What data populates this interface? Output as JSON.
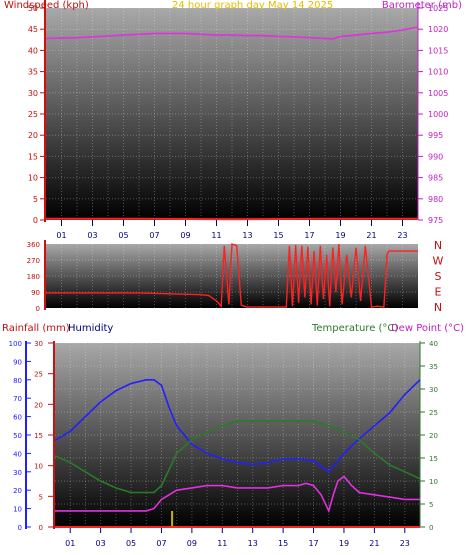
{
  "chart_data": [
    {
      "type": "line",
      "title": "24 hour graph day   May 14 2025",
      "left_axis_label": "Windspeed (kph)",
      "right_axis_label": "Barometer (mb)",
      "left_ticks": [
        "0",
        "5",
        "10",
        "15",
        "20",
        "25",
        "30",
        "35",
        "40",
        "45",
        "50"
      ],
      "right_ticks": [
        "975",
        "980",
        "985",
        "990",
        "995",
        "1000",
        "1005",
        "1010",
        "1015",
        "1020",
        "1025"
      ],
      "ylim_left": [
        0,
        50
      ],
      "ylim_right": [
        975,
        1025
      ],
      "x_ticks": [
        "01",
        "03",
        "05",
        "07",
        "09",
        "11",
        "13",
        "15",
        "17",
        "19",
        "21",
        "23"
      ],
      "xlim": [
        0,
        24
      ],
      "series": [
        {
          "name": "Barometer (mb)",
          "axis": "right",
          "color": "#e030e0",
          "x": [
            0,
            1,
            2,
            3,
            4,
            5,
            6,
            7,
            8,
            9,
            10,
            11,
            12,
            13,
            14,
            15,
            16,
            17,
            18,
            18.5,
            19,
            20,
            21,
            22,
            23,
            24
          ],
          "y": [
            1017.8,
            1017.9,
            1018.0,
            1018.2,
            1018.4,
            1018.6,
            1018.8,
            1019.0,
            1019.0,
            1019.0,
            1018.8,
            1018.6,
            1018.6,
            1018.5,
            1018.5,
            1018.3,
            1018.2,
            1018.0,
            1017.8,
            1017.7,
            1018.3,
            1018.6,
            1019.0,
            1019.3,
            1019.8,
            1020.5
          ]
        },
        {
          "name": "Windspeed (kph)",
          "axis": "left",
          "color": "#ff2020",
          "x": [
            0,
            6,
            12,
            18,
            24
          ],
          "y": [
            0.3,
            0.3,
            0.2,
            0.3,
            0.3
          ]
        }
      ],
      "grid": true
    },
    {
      "type": "line",
      "direction_ticks": [
        "360",
        "270",
        "180",
        "90",
        "0"
      ],
      "compass_labels": [
        "N",
        "W",
        "S",
        "E",
        "N"
      ],
      "ylim": [
        0,
        360
      ],
      "xlim": [
        0,
        24
      ],
      "series": [
        {
          "name": "Wind direction",
          "color": "#ff2020",
          "x": [
            0,
            2,
            4,
            6,
            8,
            10,
            10.5,
            11,
            11.3,
            11.5,
            11.8,
            12.0,
            12.3,
            12.6,
            13.0,
            14.0,
            15.0,
            15.5,
            15.7,
            15.9,
            16.1,
            16.3,
            16.5,
            16.7,
            16.9,
            17.1,
            17.3,
            17.5,
            17.7,
            17.9,
            18.1,
            18.3,
            18.5,
            18.7,
            18.9,
            19.1,
            19.4,
            19.7,
            20.0,
            20.3,
            20.6,
            21.0,
            21.4,
            21.8,
            22.0,
            22.1,
            22.5,
            23,
            24
          ],
          "y": [
            85,
            85,
            85,
            85,
            80,
            75,
            70,
            40,
            10,
            350,
            20,
            360,
            350,
            15,
            5,
            5,
            5,
            5,
            350,
            10,
            355,
            30,
            350,
            60,
            345,
            20,
            320,
            15,
            350,
            50,
            300,
            10,
            340,
            90,
            360,
            20,
            300,
            60,
            340,
            40,
            350,
            5,
            10,
            5,
            300,
            320,
            320,
            320,
            320
          ]
        }
      ]
    },
    {
      "type": "line",
      "left_axis_labels": [
        "Rainfall (mm)",
        "Humidity"
      ],
      "right_axis_labels": [
        "Temperature (°C)",
        "Dew Point (°C)"
      ],
      "humidity_ticks": [
        "0",
        "10",
        "20",
        "30",
        "40",
        "50",
        "60",
        "70",
        "80",
        "90",
        "100"
      ],
      "rainfall_ticks": [
        "0",
        "5",
        "10",
        "15",
        "20",
        "25",
        "30"
      ],
      "temp_ticks": [
        "0",
        "5",
        "10",
        "15",
        "20",
        "25",
        "30",
        "35",
        "40"
      ],
      "ylim_humidity": [
        0,
        100
      ],
      "ylim_rainfall": [
        0,
        30
      ],
      "ylim_temp": [
        0,
        40
      ],
      "x_ticks": [
        "01",
        "03",
        "05",
        "07",
        "09",
        "11",
        "13",
        "15",
        "17",
        "19",
        "21",
        "23"
      ],
      "xlim": [
        0,
        24
      ],
      "series": [
        {
          "name": "Humidity",
          "axis": "humidity",
          "color": "#2020ff",
          "x": [
            0,
            1,
            2,
            3,
            4,
            5,
            6,
            6.5,
            7,
            7.5,
            8,
            9,
            10,
            11,
            12,
            13,
            14,
            15,
            16,
            17,
            17.5,
            18,
            18.5,
            19,
            20,
            21,
            22,
            23,
            24
          ],
          "y": [
            47,
            52,
            60,
            68,
            74,
            78,
            80,
            80,
            77,
            65,
            55,
            45,
            40,
            37,
            35,
            34,
            35,
            37,
            37,
            36,
            33,
            30,
            35,
            40,
            48,
            55,
            62,
            72,
            80
          ]
        },
        {
          "name": "Temperature (°C)",
          "axis": "temp",
          "color": "#2a7a2a",
          "x": [
            0,
            1,
            2,
            3,
            4,
            5,
            6,
            6.5,
            7,
            8,
            9,
            10,
            11,
            12,
            13,
            14,
            15,
            16,
            17,
            18,
            18.5,
            19,
            20,
            21,
            22,
            23,
            24
          ],
          "y": [
            15.5,
            14,
            12,
            10,
            8.5,
            7.5,
            7.5,
            7.5,
            9,
            16,
            19,
            20.5,
            22,
            23,
            23,
            23,
            23,
            23,
            23,
            22,
            21.5,
            20.5,
            19,
            16,
            13.5,
            12,
            10.5
          ]
        },
        {
          "name": "Dew Point (°C)",
          "axis": "temp",
          "color": "#e030e0",
          "x": [
            0,
            1,
            2,
            3,
            4,
            5,
            6,
            6.5,
            7,
            8,
            9,
            10,
            11,
            12,
            13,
            14,
            15,
            16,
            16.5,
            17,
            17.5,
            18,
            18.3,
            18.6,
            19,
            19.5,
            20,
            21,
            22,
            23,
            24
          ],
          "y": [
            3.5,
            3.5,
            3.5,
            3.5,
            3.5,
            3.5,
            3.5,
            4,
            6,
            8,
            8.5,
            9,
            9,
            8.5,
            8.5,
            8.5,
            9,
            9,
            9.5,
            9,
            7,
            3.5,
            7,
            10,
            11,
            9,
            7.5,
            7,
            6.5,
            6,
            6
          ]
        },
        {
          "name": "Rainfall (mm)",
          "axis": "rainfall",
          "color": "#ff2020",
          "x": [
            0,
            24
          ],
          "y": [
            0,
            0
          ]
        }
      ],
      "rain_event_x": 7.7,
      "rain_event_color": "#c8b400",
      "grid": true
    }
  ]
}
